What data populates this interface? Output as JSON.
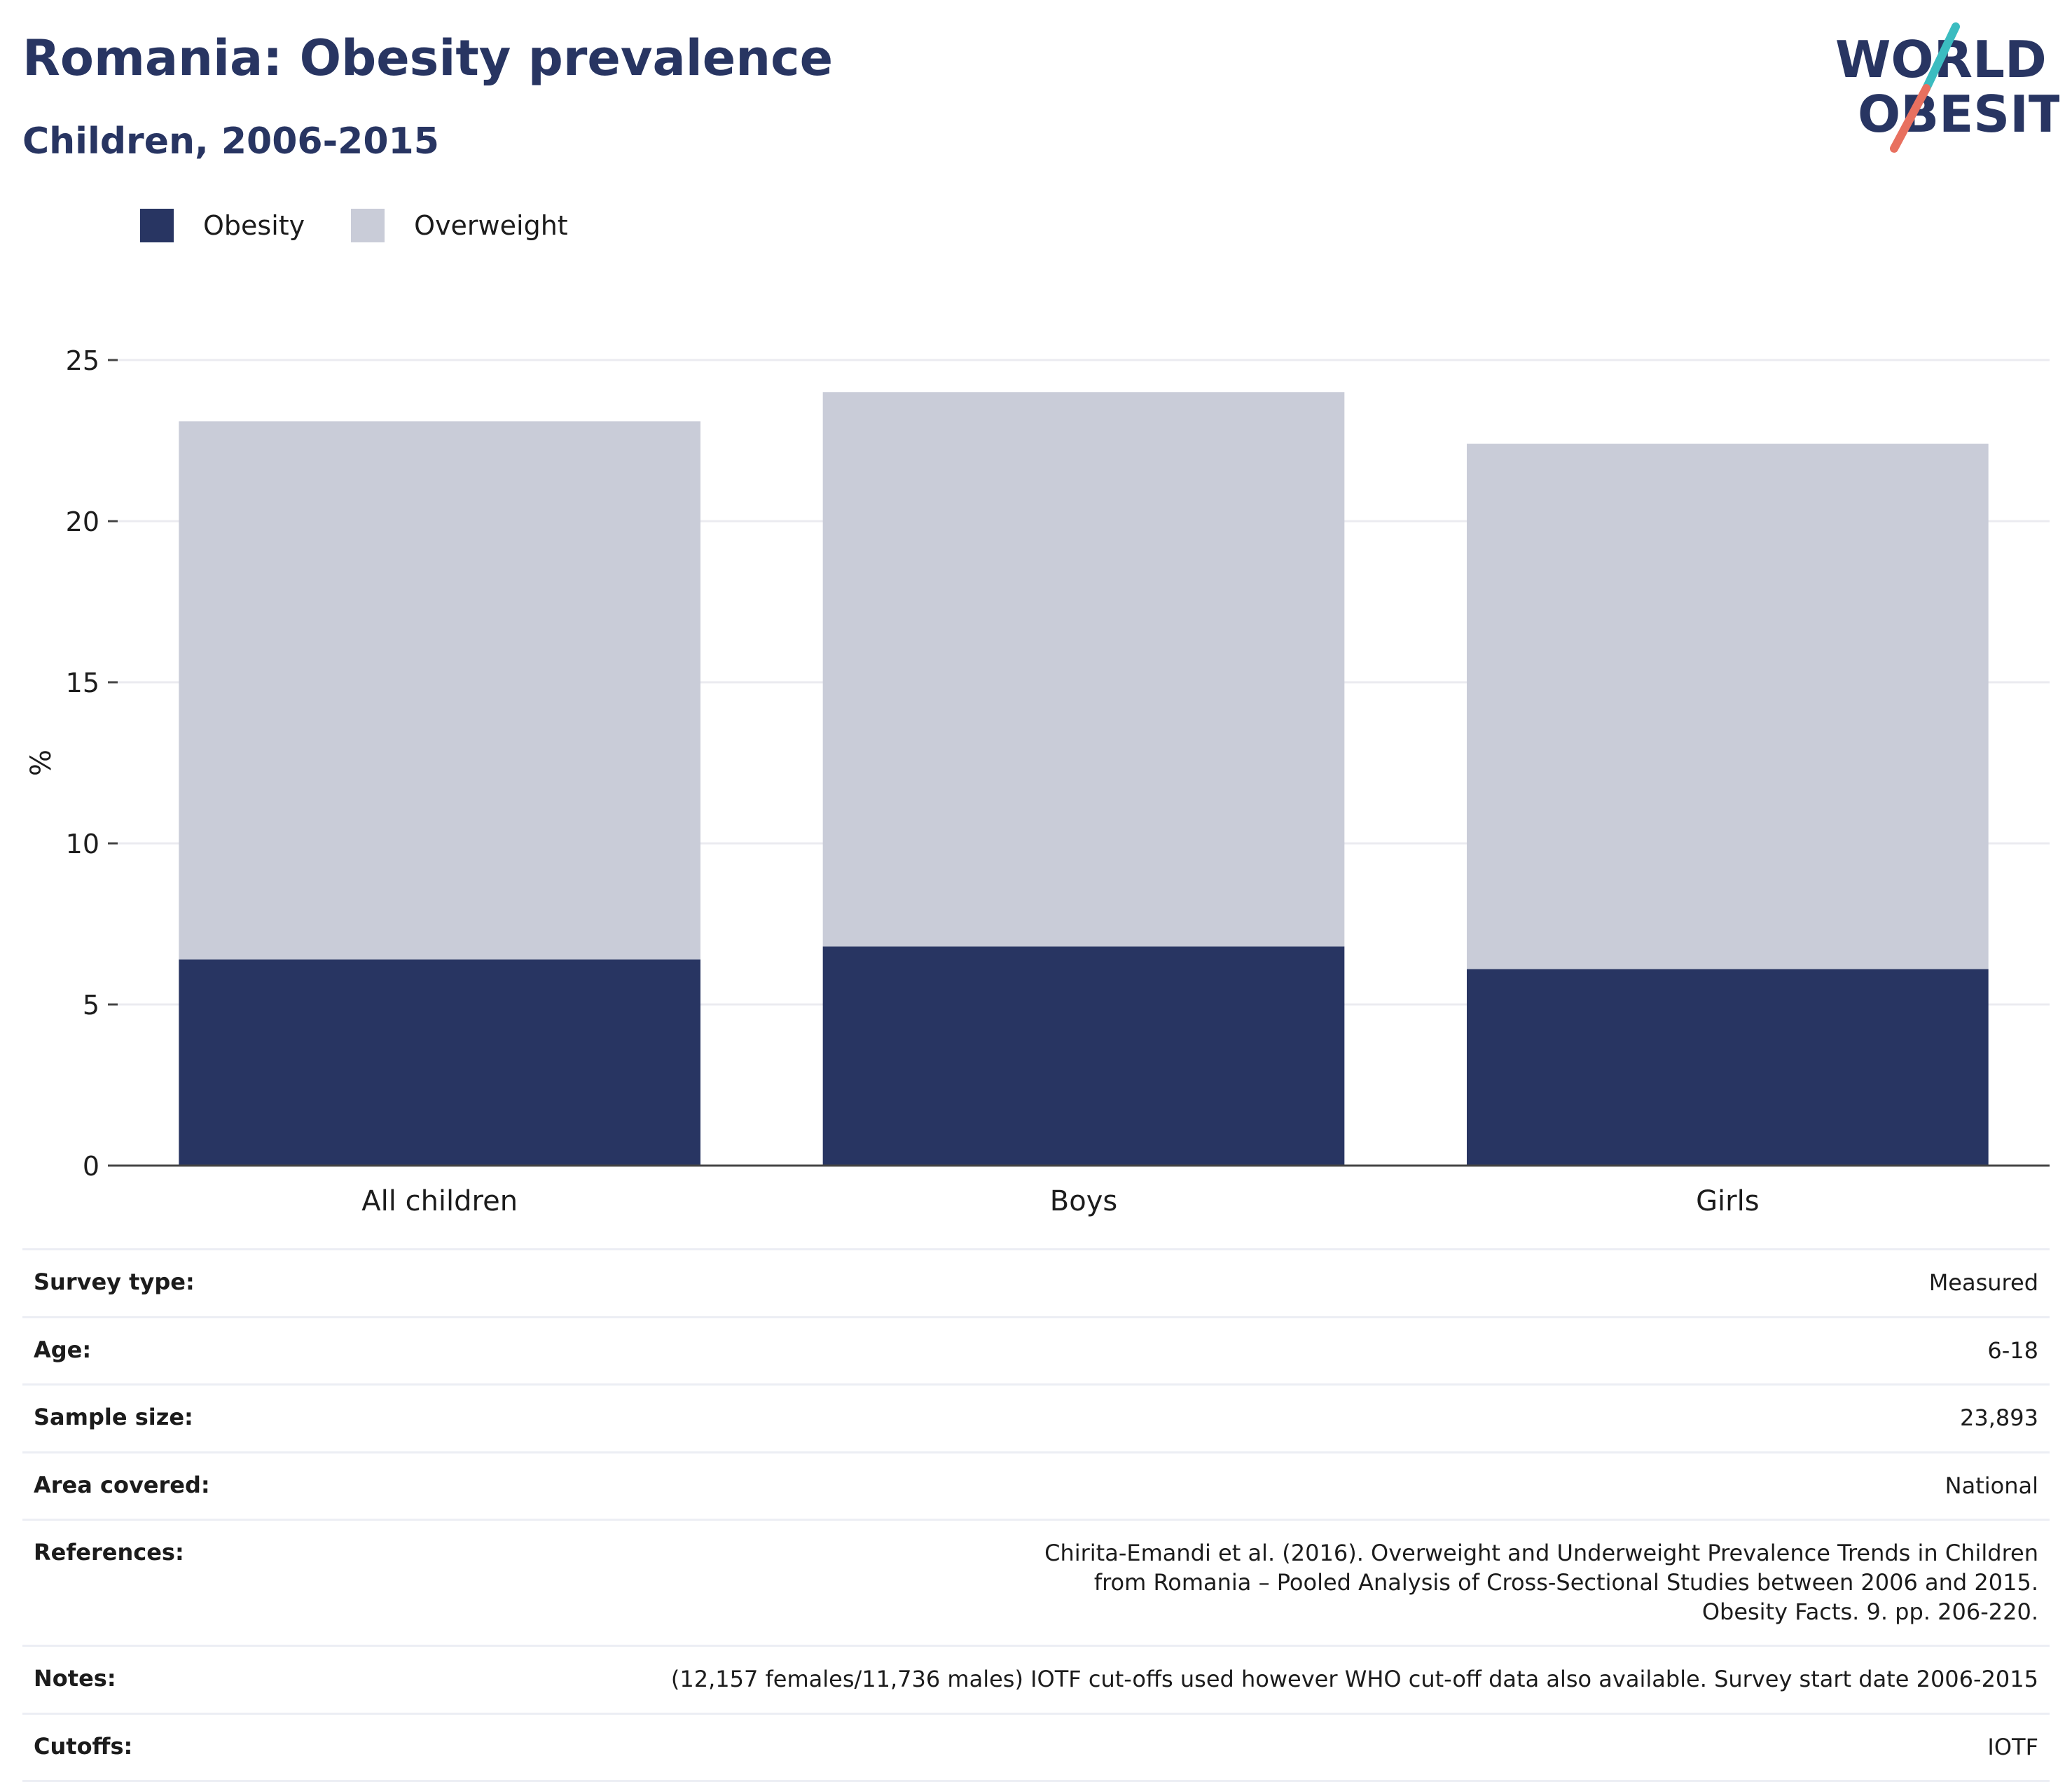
{
  "header": {
    "title": "Romania: Obesity prevalence",
    "subtitle": "Children, 2006-2015"
  },
  "logo": {
    "line1": "WORLD",
    "line2": "OBESITY",
    "accent_teal": "#3bbcc0",
    "accent_coral": "#e8705f"
  },
  "legend": [
    {
      "label": "Obesity",
      "color": "#283562"
    },
    {
      "label": "Overweight",
      "color": "#c9ccd8"
    }
  ],
  "chart_data": {
    "type": "bar",
    "stacked": true,
    "categories": [
      "All children",
      "Boys",
      "Girls"
    ],
    "series": [
      {
        "name": "Obesity",
        "values": [
          6.4,
          6.8,
          6.1
        ],
        "color": "#283562"
      },
      {
        "name": "Overweight",
        "values": [
          16.7,
          17.2,
          16.3
        ],
        "color": "#c9ccd8"
      }
    ],
    "ylabel": "%",
    "ylim": [
      0,
      25
    ],
    "yticks": [
      0,
      5,
      10,
      15,
      20,
      25
    ],
    "grid": true,
    "legend_position": "top-left"
  },
  "info": [
    {
      "key": "Survey type:",
      "value": "Measured"
    },
    {
      "key": "Age:",
      "value": "6-18"
    },
    {
      "key": "Sample size:",
      "value": "23,893"
    },
    {
      "key": "Area covered:",
      "value": "National"
    },
    {
      "key": "References:",
      "value": "Chirita-Emandi et al. (2016). Overweight and Underweight Prevalence Trends in Children from Romania – Pooled Analysis of Cross-Sectional Studies between 2006 and 2015. Obesity Facts. 9. pp. 206-220."
    },
    {
      "key": "Notes:",
      "value": "(12,157 females/11,736 males) IOTF cut-offs used however WHO cut-off data also available. Survey start date 2006-2015"
    },
    {
      "key": "Cutoffs:",
      "value": "IOTF"
    }
  ]
}
